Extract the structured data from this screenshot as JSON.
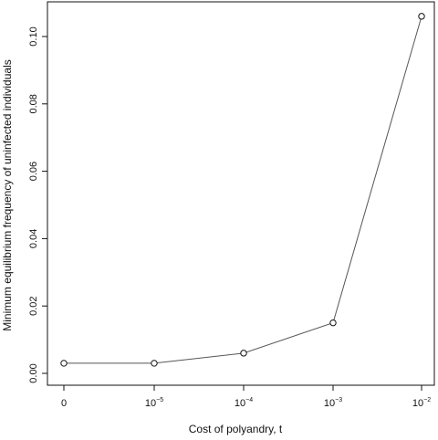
{
  "chart_data": {
    "type": "line",
    "title": "",
    "xlabel": "Cost of polyandry, t",
    "ylabel": "Minimum equilibrium frequency of uninfected individuals",
    "x_ticks": [
      {
        "base": "0",
        "exp": ""
      },
      {
        "base": "10",
        "exp": "−5"
      },
      {
        "base": "10",
        "exp": "−4"
      },
      {
        "base": "10",
        "exp": "−3"
      },
      {
        "base": "10",
        "exp": "−2"
      }
    ],
    "x": [
      0,
      1e-05,
      0.0001,
      0.001,
      0.01
    ],
    "x_scale": "categorical",
    "y_ticks": [
      "0.00",
      "0.02",
      "0.04",
      "0.06",
      "0.08",
      "0.10"
    ],
    "y_tick_values": [
      0,
      0.02,
      0.04,
      0.06,
      0.08,
      0.1
    ],
    "ylim": [
      0,
      0.106
    ],
    "series": [
      {
        "name": "",
        "values": [
          0.003,
          0.003,
          0.006,
          0.015,
          0.106
        ]
      }
    ],
    "markers": "open-circle",
    "grid": false,
    "colors": {
      "line": "#555555",
      "marker": "#111111",
      "axis": "#111111"
    }
  }
}
